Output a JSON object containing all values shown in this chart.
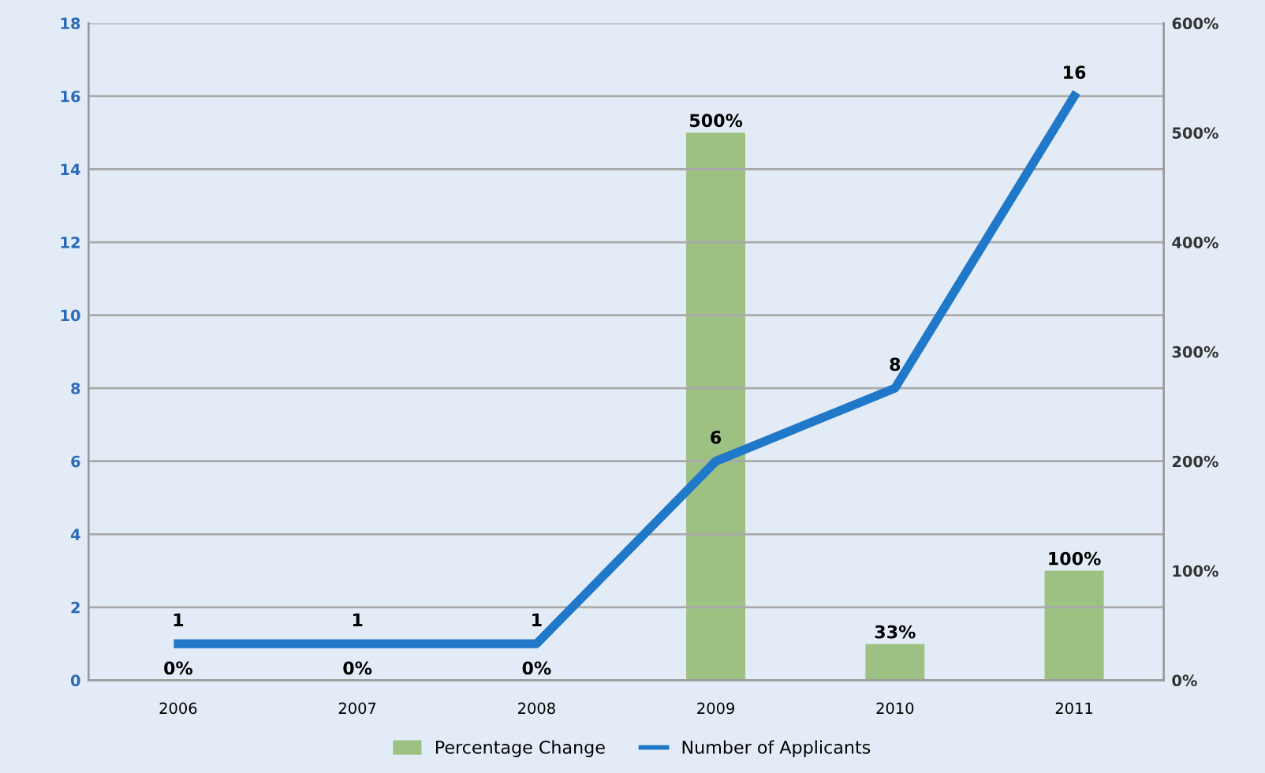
{
  "chart_data": {
    "type": "bar",
    "categories": [
      "2006",
      "2007",
      "2008",
      "2009",
      "2010",
      "2011"
    ],
    "series": [
      {
        "name": "Percentage Change",
        "axis": "y2",
        "color": "#9dc183",
        "values": [
          0,
          0,
          0,
          500,
          33,
          100
        ],
        "value_labels": [
          "0%",
          "0%",
          "0%",
          "500%",
          "33%",
          "100%"
        ]
      },
      {
        "name": "Number of Applicants",
        "type": "line",
        "color": "#1f78c8",
        "values": [
          1,
          1,
          1,
          6,
          8,
          16
        ],
        "value_labels": [
          "1",
          "1",
          "1",
          "6",
          "8",
          "16"
        ]
      }
    ],
    "ylim": [
      0,
      18
    ],
    "yticks": [
      0,
      2,
      4,
      6,
      8,
      10,
      12,
      14,
      16,
      18
    ],
    "y2lim": [
      0,
      600
    ],
    "y2ticks": [
      {
        "value": 0,
        "label": "0%"
      },
      {
        "value": 100,
        "label": "100%"
      },
      {
        "value": 200,
        "label": "200%"
      },
      {
        "value": 300,
        "label": "300%"
      },
      {
        "value": 400,
        "label": "400%"
      },
      {
        "value": 500,
        "label": "500%"
      },
      {
        "value": 600,
        "label": "600%"
      }
    ],
    "grid": "y",
    "legend": "bottom",
    "marker": "none",
    "line_style": "solid"
  }
}
